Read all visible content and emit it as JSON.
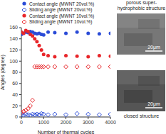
{
  "chart_data": {
    "type": "scatter",
    "x_label": "Number of thermal cycles",
    "y_label": "Angles (degree)",
    "xlim": [
      0,
      4000
    ],
    "xticks": [
      0,
      1000,
      2000,
      3000,
      4000
    ],
    "ylim": [
      0,
      160
    ],
    "yticks": [
      0,
      20,
      40,
      60,
      80,
      100,
      120,
      140,
      160
    ],
    "grid": false,
    "legend": "top",
    "series": [
      {
        "name": "Contact angle (MWNT 20vol.%)",
        "color": "#2a4bd7",
        "marker": "circle",
        "x": [
          0,
          100,
          200,
          300,
          400,
          500,
          600,
          700,
          800,
          900,
          1000,
          1200,
          1500,
          2000,
          2500,
          3000,
          3500,
          4000
        ],
        "values": [
          148,
          150,
          152,
          151,
          153,
          152,
          150,
          149,
          150,
          148,
          147,
          152,
          151,
          150,
          152,
          150,
          149,
          150
        ]
      },
      {
        "name": "Sliding angle (MWNT 20vol.%)",
        "color": "#2a4bd7",
        "marker": "open_diamond",
        "x": [
          0,
          100,
          200,
          300,
          400,
          500,
          600,
          700,
          800,
          900,
          1000,
          1200,
          1500,
          2000,
          2500,
          3000,
          3500,
          4000
        ],
        "values": [
          4,
          3,
          5,
          4,
          3,
          5,
          4,
          5,
          4,
          6,
          5,
          4,
          5,
          4,
          6,
          5,
          4,
          5
        ]
      },
      {
        "name": "Contact angle (MWNT 10vol.%)",
        "color": "#e8262a",
        "marker": "circle",
        "x": [
          0,
          100,
          200,
          300,
          400,
          500,
          600,
          700,
          800,
          900,
          1000,
          1200,
          1500,
          2000,
          2500,
          3000,
          3500,
          4000
        ],
        "values": [
          152,
          150,
          155,
          153,
          148,
          145,
          140,
          135,
          128,
          120,
          112,
          110,
          108,
          110,
          109,
          108,
          110,
          109
        ]
      },
      {
        "name": "Sliding angle (MWNT 10vol.%)",
        "color": "#e8262a",
        "marker": "open_diamond",
        "x": [
          0,
          100,
          200,
          300,
          400,
          500,
          600,
          700,
          800,
          900,
          1000,
          1200,
          1500,
          2000,
          2500,
          3000,
          3500,
          4000
        ],
        "values": [
          8,
          10,
          12,
          15,
          20,
          30,
          90,
          90,
          90,
          90,
          90,
          90,
          90,
          90,
          90,
          90,
          90,
          90
        ]
      }
    ],
    "annotations": [
      {
        "text": "porous super-hydrophobic structure",
        "scale_bar": "20μm"
      },
      {
        "text": "closed structure",
        "scale_bar": "20μm"
      }
    ]
  }
}
